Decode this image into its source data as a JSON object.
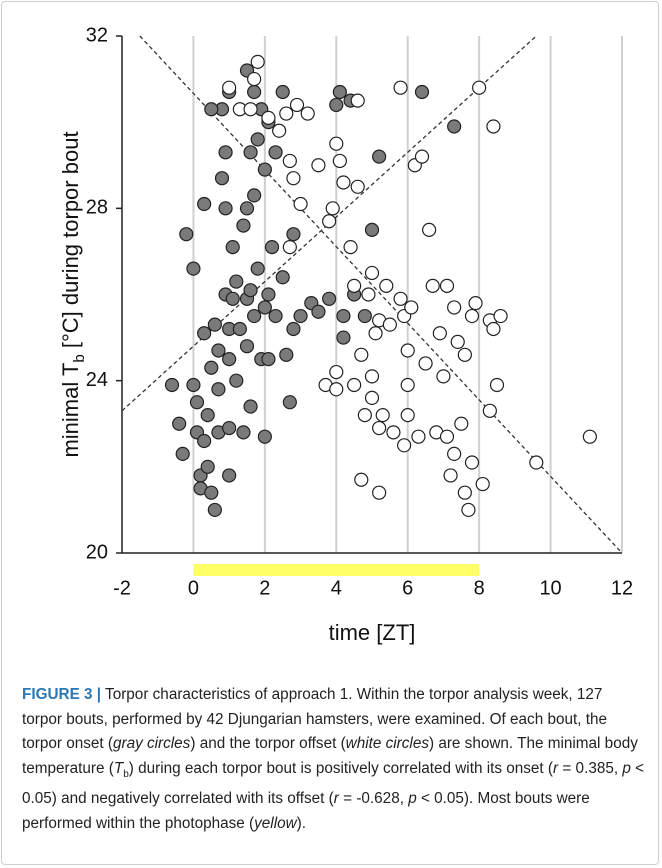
{
  "chart_data": {
    "type": "scatter",
    "x_label": "time [ZT]",
    "y_label": [
      {
        "text": "minimal T",
        "style": "normal"
      },
      {
        "text": "b",
        "style": "sub"
      },
      {
        "text": " [°C] during torpor bout",
        "style": "normal"
      }
    ],
    "xlim": [
      -2,
      12
    ],
    "xticks": [
      -2,
      0,
      2,
      4,
      6,
      8,
      10,
      12
    ],
    "ylim": [
      20,
      32
    ],
    "yticks": [
      20,
      24,
      28,
      32
    ],
    "grid": true,
    "highlight_band": {
      "x": [
        0,
        8
      ],
      "color": "#ffff66"
    },
    "trend_lines": [
      {
        "x": [
          -2,
          9.6
        ],
        "y": [
          23.3,
          32
        ]
      },
      {
        "x": [
          -1.5,
          12
        ],
        "y": [
          32,
          20
        ]
      }
    ],
    "series": [
      {
        "color": "#7a7a7a",
        "x": [
          -0.6,
          -0.4,
          -0.3,
          -0.2,
          0,
          0,
          0.1,
          0.1,
          0.2,
          0.2,
          0.3,
          0.3,
          0.3,
          0.4,
          0.4,
          0.5,
          0.5,
          0.6,
          0.6,
          0.7,
          0.7,
          0.7,
          0.8,
          0.8,
          0.9,
          0.9,
          0.9,
          1.0,
          1.0,
          1.0,
          1.0,
          1.1,
          1.1,
          1.2,
          1.2,
          1.3,
          1.4,
          1.4,
          1.5,
          1.5,
          1.5,
          1.5,
          1.6,
          1.6,
          1.6,
          1.7,
          1.7,
          1.7,
          1.8,
          1.8,
          1.9,
          1.9,
          2.0,
          2.0,
          2.0,
          2.1,
          2.1,
          2.1,
          2.2,
          2.3,
          2.3,
          2.5,
          2.5,
          2.6,
          2.7,
          2.8,
          2.8,
          3.0,
          3.3,
          3.5,
          3.8,
          4.0,
          4.1,
          4.2,
          4.4,
          4.5,
          4.8,
          5.0,
          5.2,
          6.4,
          7.3,
          4.2,
          1.0,
          0.5
        ],
        "values": [
          23.9,
          23.0,
          22.3,
          27.4,
          26.6,
          23.9,
          23.5,
          22.8,
          21.8,
          21.5,
          28.1,
          25.1,
          22.6,
          23.2,
          22.0,
          24.3,
          21.4,
          25.3,
          21.0,
          24.7,
          23.8,
          22.8,
          30.3,
          28.7,
          29.3,
          28.0,
          26.0,
          25.2,
          24.5,
          22.9,
          21.8,
          27.1,
          25.9,
          26.3,
          24.0,
          25.2,
          27.6,
          22.8,
          31.2,
          28.0,
          25.9,
          24.8,
          29.3,
          26.1,
          23.4,
          30.7,
          28.3,
          25.5,
          29.6,
          26.6,
          30.3,
          24.5,
          28.9,
          25.7,
          22.7,
          30.0,
          26.0,
          24.5,
          27.1,
          29.3,
          25.5,
          30.7,
          26.4,
          24.6,
          23.5,
          27.4,
          25.2,
          25.5,
          25.8,
          25.6,
          25.9,
          30.4,
          30.7,
          25.5,
          30.5,
          26.0,
          25.5,
          27.5,
          29.2,
          30.7,
          29.9,
          25.0,
          30.7,
          30.3
        ]
      },
      {
        "color": "#ffffff",
        "x": [
          1.0,
          1.3,
          1.6,
          1.7,
          1.8,
          2.1,
          2.4,
          2.6,
          2.7,
          2.9,
          3.0,
          2.7,
          2.8,
          3.2,
          3.5,
          3.8,
          3.9,
          4.0,
          4.1,
          4.2,
          4.4,
          4.5,
          4.6,
          4.6,
          4.9,
          5.0,
          5.2,
          5.4,
          5.5,
          5.8,
          5.9,
          6.1,
          6.2,
          6.4,
          6.6,
          6.7,
          6.9,
          7.1,
          7.3,
          7.4,
          7.6,
          7.8,
          7.9,
          8.3,
          8.4,
          8.6,
          8.5,
          8.3,
          8.4,
          8.0,
          5.8,
          3.7,
          4.0,
          4.0,
          4.5,
          4.7,
          4.8,
          5.0,
          5.0,
          5.2,
          5.3,
          5.6,
          5.9,
          6.0,
          6.0,
          6.3,
          6.5,
          6.8,
          7.0,
          7.1,
          7.2,
          7.3,
          7.5,
          7.6,
          7.7,
          7.8,
          8.1,
          4.7,
          5.2,
          9.6,
          11.1,
          6.0,
          5.1
        ],
        "values": [
          30.8,
          30.3,
          30.3,
          31.0,
          31.4,
          30.1,
          29.8,
          30.2,
          29.1,
          30.4,
          28.1,
          27.1,
          28.7,
          30.2,
          29.0,
          27.7,
          28.0,
          29.5,
          29.1,
          28.6,
          27.1,
          26.2,
          28.5,
          30.5,
          26.0,
          26.5,
          25.4,
          26.2,
          25.3,
          25.9,
          25.5,
          25.7,
          29.0,
          29.2,
          27.5,
          26.2,
          25.1,
          26.2,
          25.7,
          24.9,
          24.6,
          25.5,
          25.8,
          25.4,
          25.2,
          25.5,
          23.9,
          23.3,
          29.9,
          30.8,
          30.8,
          23.9,
          24.2,
          23.8,
          23.9,
          24.6,
          23.2,
          24.1,
          23.6,
          22.9,
          23.2,
          22.8,
          22.5,
          23.9,
          23.2,
          22.7,
          24.4,
          22.8,
          24.1,
          22.7,
          21.8,
          22.3,
          23.0,
          21.4,
          21.0,
          22.1,
          21.6,
          21.7,
          21.4,
          22.1,
          22.7,
          24.7,
          25.1
        ]
      }
    ]
  },
  "caption": [
    {
      "text": "FIGURE 3 |",
      "style": "bold"
    },
    {
      "text": " Torpor characteristics of approach 1. Within the torpor analysis week, 127 torpor bouts, performed by 42 Djungarian hamsters, were examined. Of each bout, the torpor onset (",
      "style": "normal"
    },
    {
      "text": "gray circles",
      "style": "italic"
    },
    {
      "text": ") and the torpor offset (",
      "style": "normal"
    },
    {
      "text": "white circles",
      "style": "italic"
    },
    {
      "text": ") are shown. The minimal body temperature (",
      "style": "normal"
    },
    {
      "text": "T",
      "style": "italic"
    },
    {
      "text": "b",
      "style": "sub"
    },
    {
      "text": ") during each torpor bout is positively correlated with its onset (",
      "style": "normal"
    },
    {
      "text": "r",
      "style": "italic"
    },
    {
      "text": " = 0.385, ",
      "style": "normal"
    },
    {
      "text": "p",
      "style": "italic"
    },
    {
      "text": " < 0.05) and negatively correlated with its offset (",
      "style": "normal"
    },
    {
      "text": "r",
      "style": "italic"
    },
    {
      "text": " = -0.628, ",
      "style": "normal"
    },
    {
      "text": "p",
      "style": "italic"
    },
    {
      "text": " < 0.05). Most bouts were performed within the photophase (",
      "style": "normal"
    },
    {
      "text": "yellow",
      "style": "italic"
    },
    {
      "text": ").",
      "style": "normal"
    }
  ]
}
